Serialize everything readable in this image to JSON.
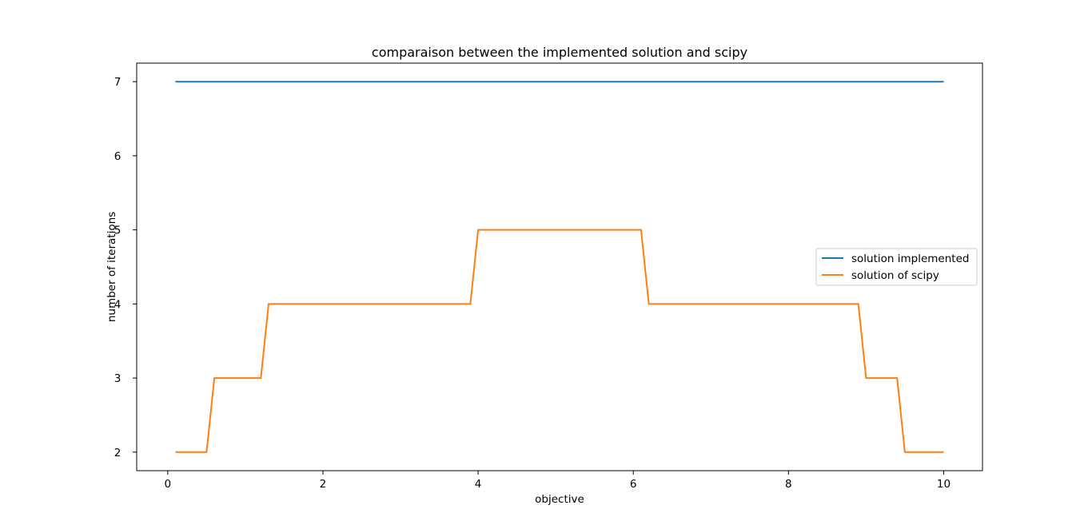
{
  "chart_data": {
    "type": "line",
    "title": "comparaison between the implemented solution and scipy",
    "xlabel": "objective",
    "ylabel": "number of iterations",
    "xlim": [
      -0.4,
      10.5
    ],
    "ylim": [
      1.75,
      7.25
    ],
    "xticks": [
      0,
      2,
      4,
      6,
      8,
      10
    ],
    "yticks": [
      2,
      3,
      4,
      5,
      6,
      7
    ],
    "grid": false,
    "legend_position": "center-right",
    "series": [
      {
        "name": "solution implemented",
        "color": "#1f77b4",
        "x": [
          0.1,
          10.0
        ],
        "y": [
          7,
          7
        ]
      },
      {
        "name": "solution of scipy",
        "color": "#ff7f0e",
        "x": [
          0.1,
          0.5,
          0.6,
          1.2,
          1.3,
          3.9,
          4.0,
          6.1,
          6.2,
          8.9,
          9.0,
          9.4,
          9.5,
          10.0
        ],
        "y": [
          2,
          2,
          3,
          3,
          4,
          4,
          5,
          5,
          4,
          4,
          3,
          3,
          2,
          2
        ]
      }
    ]
  }
}
